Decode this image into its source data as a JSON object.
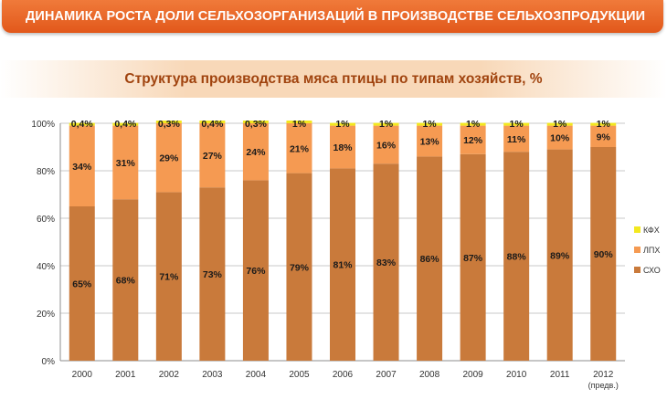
{
  "header": {
    "title": "ДИНАМИКА РОСТА ДОЛИ СЕЛЬХОЗОРГАНИЗАЦИЙ В ПРОИЗВОДСТВЕ СЕЛЬХОЗПРОДУКЦИИ",
    "subtitle": "Структура производства мяса птицы по типам хозяйств, %",
    "bg_color": "#e8621f"
  },
  "chart_data": {
    "type": "bar",
    "stacked": true,
    "categories": [
      "2000",
      "2001",
      "2002",
      "2003",
      "2004",
      "2005",
      "2006",
      "2007",
      "2008",
      "2009",
      "2010",
      "2011",
      "2012"
    ],
    "category_notes": {
      "2012": "(предв.)"
    },
    "ylim": [
      0,
      100
    ],
    "y_ticks": [
      0,
      20,
      40,
      60,
      80,
      100
    ],
    "y_tick_labels": [
      "0%",
      "20%",
      "40%",
      "60%",
      "80%",
      "100%"
    ],
    "legend_position": "right",
    "series": [
      {
        "name": "СХО",
        "color": "#c97a3b",
        "values": [
          65,
          68,
          71,
          73,
          76,
          79,
          81,
          83,
          86,
          87,
          88,
          89,
          90
        ],
        "labels": [
          "65%",
          "68%",
          "71%",
          "73%",
          "76%",
          "79%",
          "81%",
          "83%",
          "86%",
          "87%",
          "88%",
          "89%",
          "90%"
        ]
      },
      {
        "name": "ЛПХ",
        "color": "#f59a52",
        "values": [
          34,
          31,
          29,
          27,
          24,
          21,
          18,
          16,
          13,
          12,
          11,
          10,
          9
        ],
        "labels": [
          "34%",
          "31%",
          "29%",
          "27%",
          "24%",
          "21%",
          "18%",
          "16%",
          "13%",
          "12%",
          "11%",
          "10%",
          "9%"
        ]
      },
      {
        "name": "КФХ",
        "color": "#f3e81f",
        "values": [
          0.4,
          0.4,
          0.3,
          0.4,
          0.3,
          1,
          1,
          1,
          1,
          1,
          1,
          1,
          1
        ],
        "labels": [
          "0,4%",
          "0,4%",
          "0,3%",
          "0,4%",
          "0,3%",
          "1%",
          "1%",
          "1%",
          "1%",
          "1%",
          "1%",
          "1%",
          "1%"
        ]
      }
    ]
  }
}
